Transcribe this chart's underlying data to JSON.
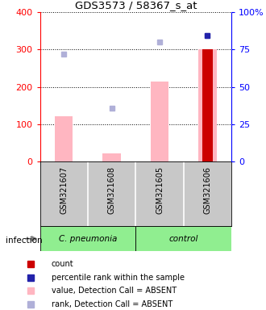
{
  "title": "GDS3573 / 58367_s_at",
  "samples": [
    "GSM321607",
    "GSM321608",
    "GSM321605",
    "GSM321606"
  ],
  "left_ylim": [
    0,
    400
  ],
  "right_ylim": [
    0,
    100
  ],
  "left_yticks": [
    0,
    100,
    200,
    300,
    400
  ],
  "right_yticks": [
    0,
    25,
    50,
    75,
    100
  ],
  "right_yticklabels": [
    "0",
    "25",
    "50",
    "75",
    "100%"
  ],
  "pink_bar_values": [
    120,
    20,
    215,
    300
  ],
  "blue_square_values": [
    288,
    142,
    320,
    338
  ],
  "red_bar_values": [
    null,
    null,
    null,
    300
  ],
  "dark_blue_square_values": [
    null,
    null,
    null,
    338
  ],
  "pink_bar_color": "#FFB6C1",
  "blue_square_color": "#B0B0D8",
  "dark_blue_square_color": "#2222AA",
  "red_bar_color": "#CC0000",
  "group_bg_color": "#C8C8C8",
  "group_configs": [
    {
      "start": 0,
      "end": 1,
      "label": "C. pneumonia",
      "color": "#90EE90"
    },
    {
      "start": 2,
      "end": 3,
      "label": "control",
      "color": "#90EE90"
    }
  ],
  "legend_colors": [
    "#CC0000",
    "#2222AA",
    "#FFB6C1",
    "#B0B0D8"
  ],
  "legend_labels": [
    "count",
    "percentile rank within the sample",
    "value, Detection Call = ABSENT",
    "rank, Detection Call = ABSENT"
  ]
}
